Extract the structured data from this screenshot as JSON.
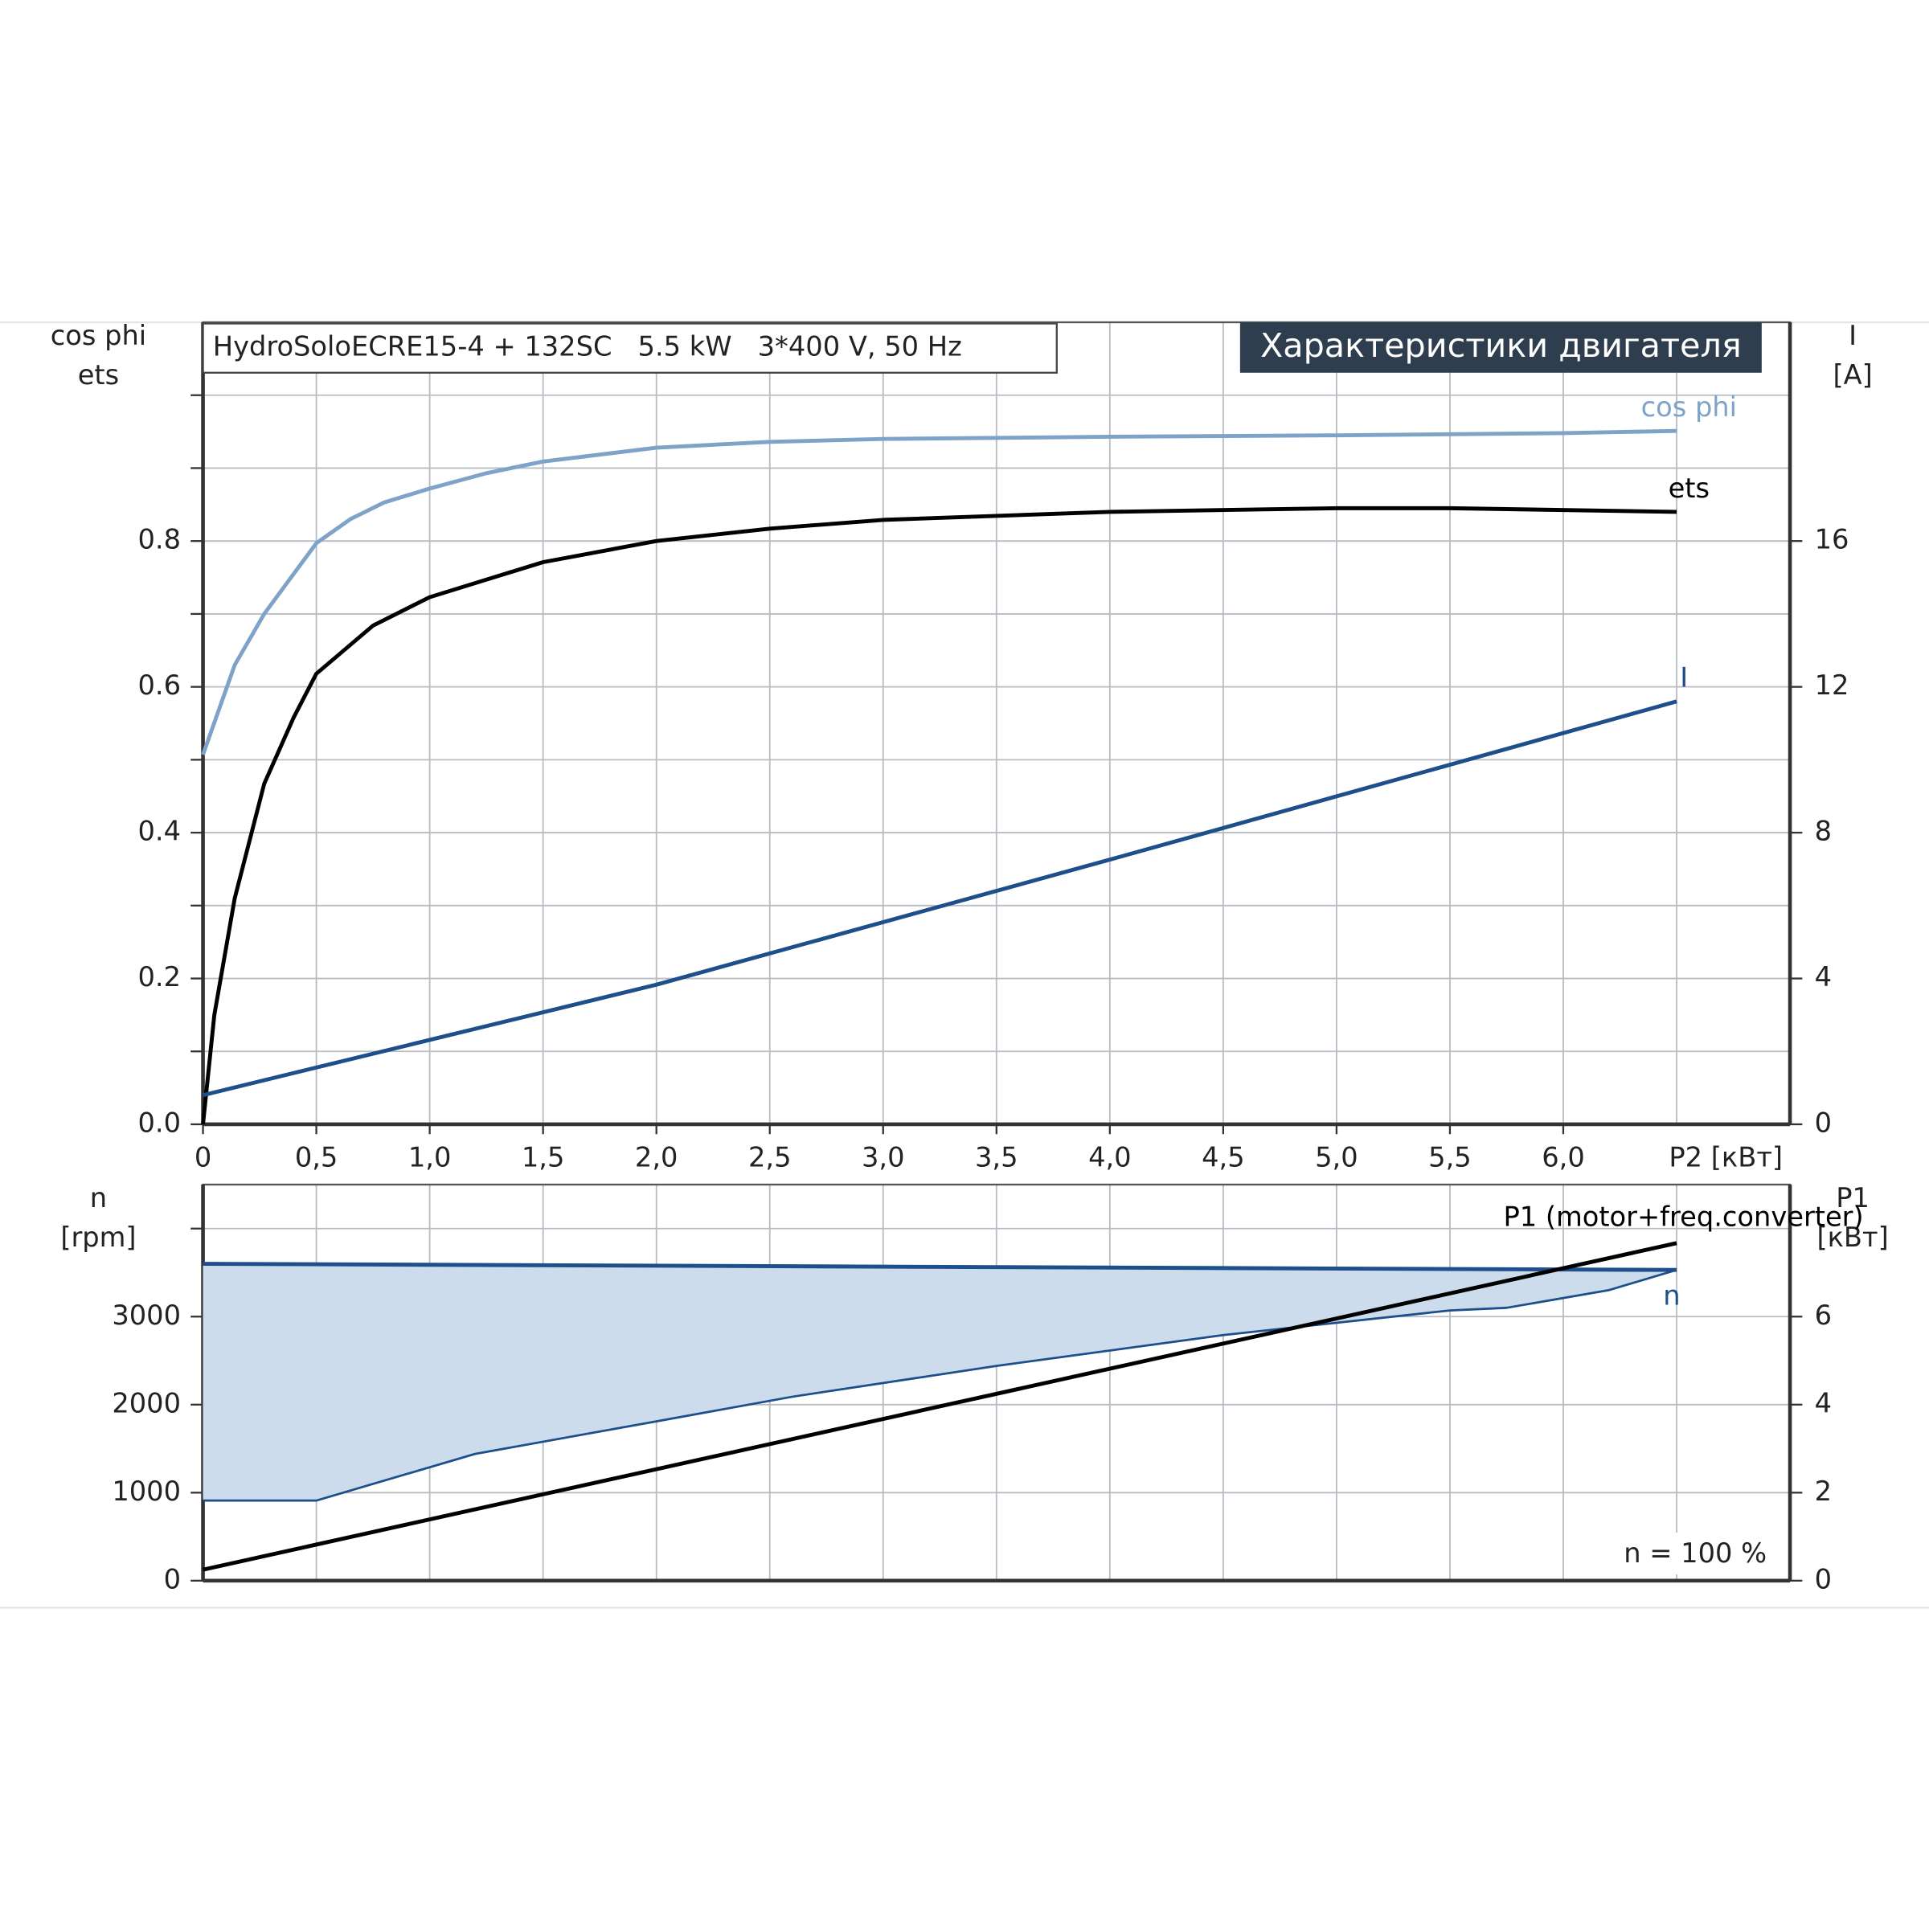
{
  "chart_data": [
    {
      "type": "line",
      "title": "HydroSoloECRE15-4 + 132SC   5.5 kW   3*400 V, 50 Hz",
      "header": "Характеристики двигателя",
      "ylabel": [
        "cos phi",
        "ets"
      ],
      "y2label": [
        "I",
        "[A]"
      ],
      "xlabel": "P2 [кВт]",
      "xlim": [
        0,
        7
      ],
      "ylim": [
        0,
        1.1
      ],
      "y2lim": [
        0,
        22
      ],
      "xticks": [
        {
          "value": 0,
          "label": "0"
        },
        {
          "value": 0.5,
          "label": "0,5"
        },
        {
          "value": 1,
          "label": "1,0"
        },
        {
          "value": 1.5,
          "label": "1,5"
        },
        {
          "value": 2,
          "label": "2,0"
        },
        {
          "value": 2.5,
          "label": "2,5"
        },
        {
          "value": 3,
          "label": "3,0"
        },
        {
          "value": 3.5,
          "label": "3,5"
        },
        {
          "value": 4,
          "label": "4,0"
        },
        {
          "value": 4.5,
          "label": "4,5"
        },
        {
          "value": 5,
          "label": "5,0"
        },
        {
          "value": 5.5,
          "label": "5,5"
        },
        {
          "value": 6,
          "label": "6,0"
        }
      ],
      "xgrid": [
        6.5
      ],
      "yticks": [
        {
          "value": 0,
          "label": "0.0"
        },
        {
          "value": 0.2,
          "label": "0.2"
        },
        {
          "value": 0.4,
          "label": "0.4"
        },
        {
          "value": 0.6,
          "label": "0.6"
        },
        {
          "value": 0.8,
          "label": "0.8"
        }
      ],
      "ygrid": [
        0.1,
        0.3,
        0.5,
        0.7,
        0.9,
        1.0
      ],
      "y2ticks": [
        0,
        4,
        8,
        12,
        16
      ],
      "grid": true,
      "series": [
        {
          "name": "cos phi",
          "color": "#7fa3c8",
          "x": [
            0,
            0.14,
            0.27,
            0.4,
            0.5,
            0.65,
            0.8,
            1.0,
            1.25,
            1.5,
            2.0,
            2.5,
            3.0,
            4.0,
            5.0,
            6.0,
            6.5
          ],
          "values": [
            0.507,
            0.63,
            0.7,
            0.755,
            0.797,
            0.83,
            0.853,
            0.872,
            0.893,
            0.909,
            0.928,
            0.936,
            0.94,
            0.943,
            0.945,
            0.948,
            0.951
          ]
        },
        {
          "name": "ets",
          "color": "#000000",
          "x": [
            0,
            0.05,
            0.14,
            0.27,
            0.4,
            0.5,
            0.75,
            1.0,
            1.5,
            2.0,
            2.5,
            3.0,
            4.0,
            5.0,
            5.5,
            6.5
          ],
          "values": [
            0,
            0.15,
            0.31,
            0.467,
            0.558,
            0.618,
            0.684,
            0.723,
            0.771,
            0.8,
            0.817,
            0.829,
            0.84,
            0.845,
            0.845,
            0.84
          ]
        },
        {
          "name": "I",
          "color": "#1d4f8a",
          "axis": "y2",
          "x": [
            0,
            2.0,
            4.0,
            6.5
          ],
          "values": [
            0.8,
            3.83,
            7.26,
            11.6
          ]
        }
      ]
    },
    {
      "type": "line",
      "ylabel": [
        "n",
        "[rpm]"
      ],
      "y2label": [
        "P1",
        "[кВт]"
      ],
      "annotation": "n = 100 %",
      "xlim": [
        0,
        7
      ],
      "ylim": [
        0,
        4500
      ],
      "y2lim": [
        0,
        9
      ],
      "xgrid": [
        0.5,
        1,
        1.5,
        2,
        2.5,
        3,
        3.5,
        4,
        4.5,
        5,
        5.5,
        6,
        6.5
      ],
      "yticks": [
        0,
        1000,
        2000,
        3000
      ],
      "ygrid": [
        4000
      ],
      "y2ticks": [
        0,
        2,
        4,
        6
      ],
      "grid": true,
      "series": [
        {
          "name": "n",
          "color": "#1d4f8a",
          "x": [
            0,
            6.5
          ],
          "values": [
            3600,
            3530
          ]
        },
        {
          "color": "#1d4f8a",
          "fill": "#cddcec",
          "x": [
            0,
            0.5,
            1.2,
            2.0,
            2.6,
            3.5,
            4.5,
            5.5,
            5.75,
            6.2,
            6.5
          ],
          "values": [
            910,
            910,
            1440,
            1810,
            2090,
            2440,
            2790,
            3070,
            3100,
            3300,
            3530
          ]
        },
        {
          "name": "P1 (motor+freq.converter)",
          "color": "#000000",
          "axis": "y2",
          "x": [
            0,
            6.5
          ],
          "values": [
            0.25,
            7.67
          ]
        }
      ]
    }
  ]
}
